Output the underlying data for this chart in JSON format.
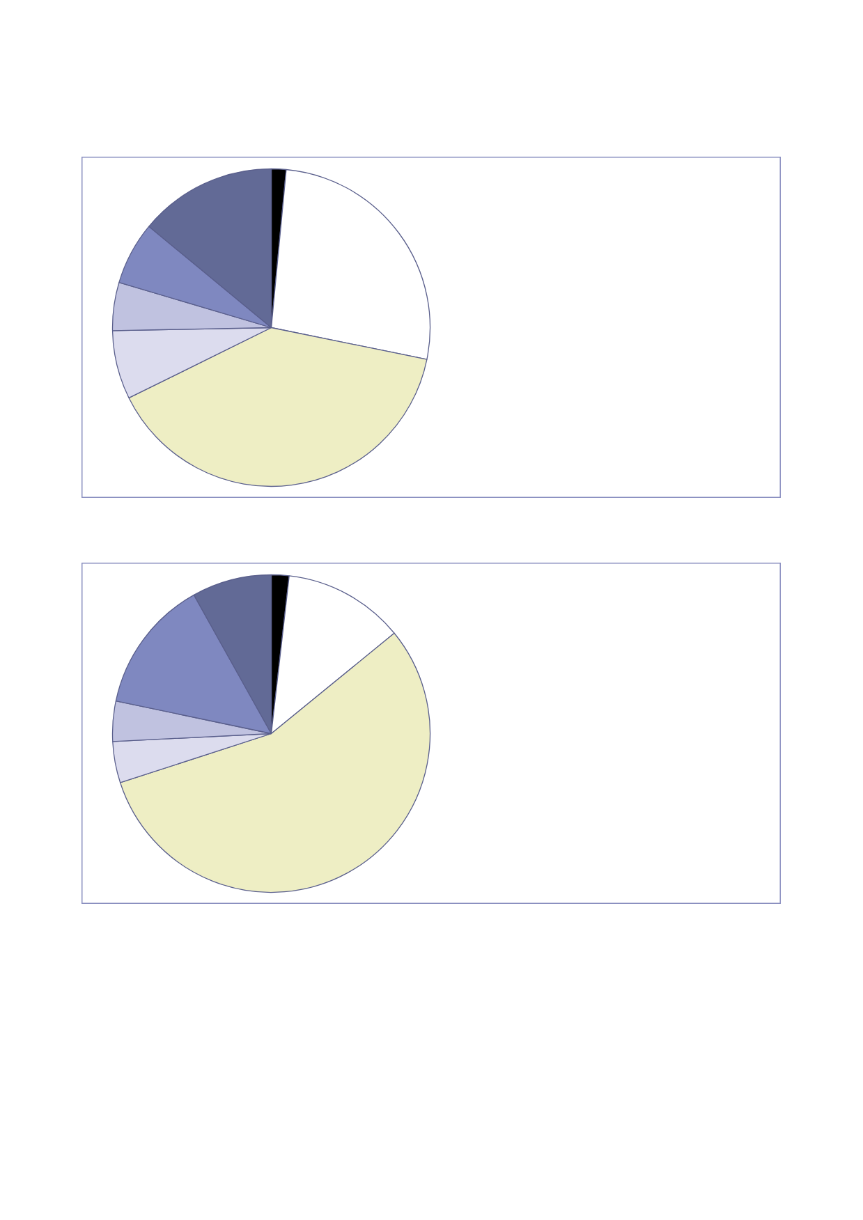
{
  "chart_data": [
    {
      "type": "pie",
      "categories": [
        null,
        null,
        null,
        null,
        null,
        null,
        null
      ],
      "values": [
        1.5,
        26.7,
        39.5,
        7.0,
        4.9,
        6.4,
        14.0
      ],
      "colors": [
        "#000000",
        "#ffffff",
        "#eeeec4",
        "#dcdcee",
        "#c0c2e0",
        "#7f88c0",
        "#626a96"
      ]
    },
    {
      "type": "pie",
      "categories": [
        null,
        null,
        null,
        null,
        null,
        null,
        null
      ],
      "values": [
        1.8,
        12.3,
        55.9,
        4.2,
        4.1,
        13.6,
        8.1
      ],
      "colors": [
        "#000000",
        "#ffffff",
        "#eeeec4",
        "#dcdcee",
        "#c0c2e0",
        "#7f88c0",
        "#626a96"
      ]
    }
  ]
}
